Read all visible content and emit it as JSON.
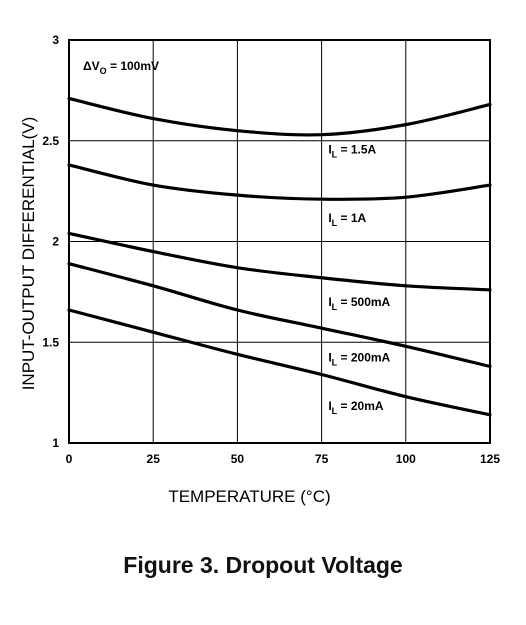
{
  "caption": "Figure 3. Dropout Voltage",
  "chart_data": {
    "type": "line",
    "xlabel": "TEMPERATURE (°C)",
    "ylabel": "INPUT-OUTPUT DIFFERENTIAL(V)",
    "xlim": [
      0,
      125
    ],
    "ylim": [
      1,
      3
    ],
    "x_ticks": [
      "0",
      "25",
      "50",
      "75",
      "100",
      "125"
    ],
    "y_ticks": [
      "1",
      "1.5",
      "2",
      "2.5",
      "3"
    ],
    "grid": true,
    "annotation": {
      "prefix": "ΔV",
      "sub": "O",
      "suffix": " = 100mV"
    },
    "x": [
      0,
      25,
      50,
      75,
      100,
      125
    ],
    "series": [
      {
        "name": "1.5A",
        "values": [
          2.71,
          2.61,
          2.55,
          2.53,
          2.58,
          2.68
        ]
      },
      {
        "name": "1A",
        "values": [
          2.38,
          2.28,
          2.23,
          2.21,
          2.22,
          2.28
        ]
      },
      {
        "name": "500mA",
        "values": [
          2.04,
          1.95,
          1.87,
          1.82,
          1.78,
          1.76
        ]
      },
      {
        "name": "200mA",
        "values": [
          1.89,
          1.78,
          1.66,
          1.57,
          1.48,
          1.38
        ]
      },
      {
        "name": "20mA",
        "values": [
          1.66,
          1.55,
          1.44,
          1.34,
          1.23,
          1.14
        ]
      }
    ],
    "series_label_prefix": "I",
    "series_label_sub": "L",
    "series_label_eq": " = "
  }
}
